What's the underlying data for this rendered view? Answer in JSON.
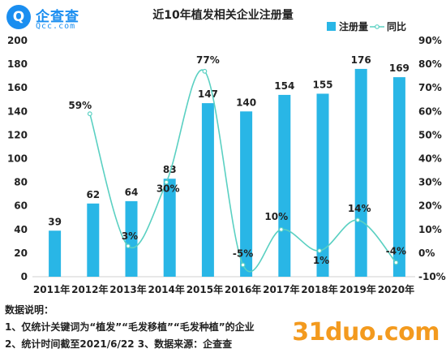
{
  "logo": {
    "glyph": "Q",
    "name": "企查查",
    "domain": "Qcc.com"
  },
  "watermark": "31duo.com",
  "notes": {
    "heading": "数据说明：",
    "line1": "1、仅统计关键词为“植发”“毛发移植”“毛发种植”的企业",
    "line2": "2、统计时间截至2021/6/22     3、数据来源：企查查"
  },
  "chart_data": {
    "type": "bar",
    "title": "近10年植发相关企业注册量",
    "categories": [
      "2011年",
      "2012年",
      "2013年",
      "2014年",
      "2015年",
      "2016年",
      "2017年",
      "2018年",
      "2019年",
      "2020年"
    ],
    "series": [
      {
        "name": "注册量",
        "kind": "bar",
        "axis": "left",
        "color": "#29b6e6",
        "values": [
          39,
          62,
          64,
          83,
          147,
          140,
          154,
          155,
          176,
          169
        ]
      },
      {
        "name": "同比",
        "kind": "line",
        "smooth": true,
        "axis": "right",
        "color": "#5ad0c2",
        "values": [
          null,
          59,
          3,
          30,
          77,
          -5,
          10,
          1,
          14,
          -4
        ],
        "labels": [
          "",
          "59%",
          "3%",
          "30%",
          "77%",
          "-5%",
          "10%",
          "1%",
          "14%",
          "-4%"
        ]
      }
    ],
    "y_left": {
      "min": 0,
      "max": 200,
      "ticks": [
        0,
        20,
        40,
        60,
        80,
        100,
        120,
        140,
        160,
        180,
        200
      ]
    },
    "y_right": {
      "min": -10,
      "max": 90,
      "ticks": [
        -10,
        0,
        10,
        20,
        30,
        40,
        50,
        60,
        70,
        80,
        90
      ],
      "tick_labels": [
        "-10%",
        "0%",
        "10%",
        "20%",
        "30%",
        "40%",
        "50%",
        "60%",
        "70%",
        "80%",
        "90%"
      ]
    },
    "legend_position": "top-right",
    "grid": false
  }
}
